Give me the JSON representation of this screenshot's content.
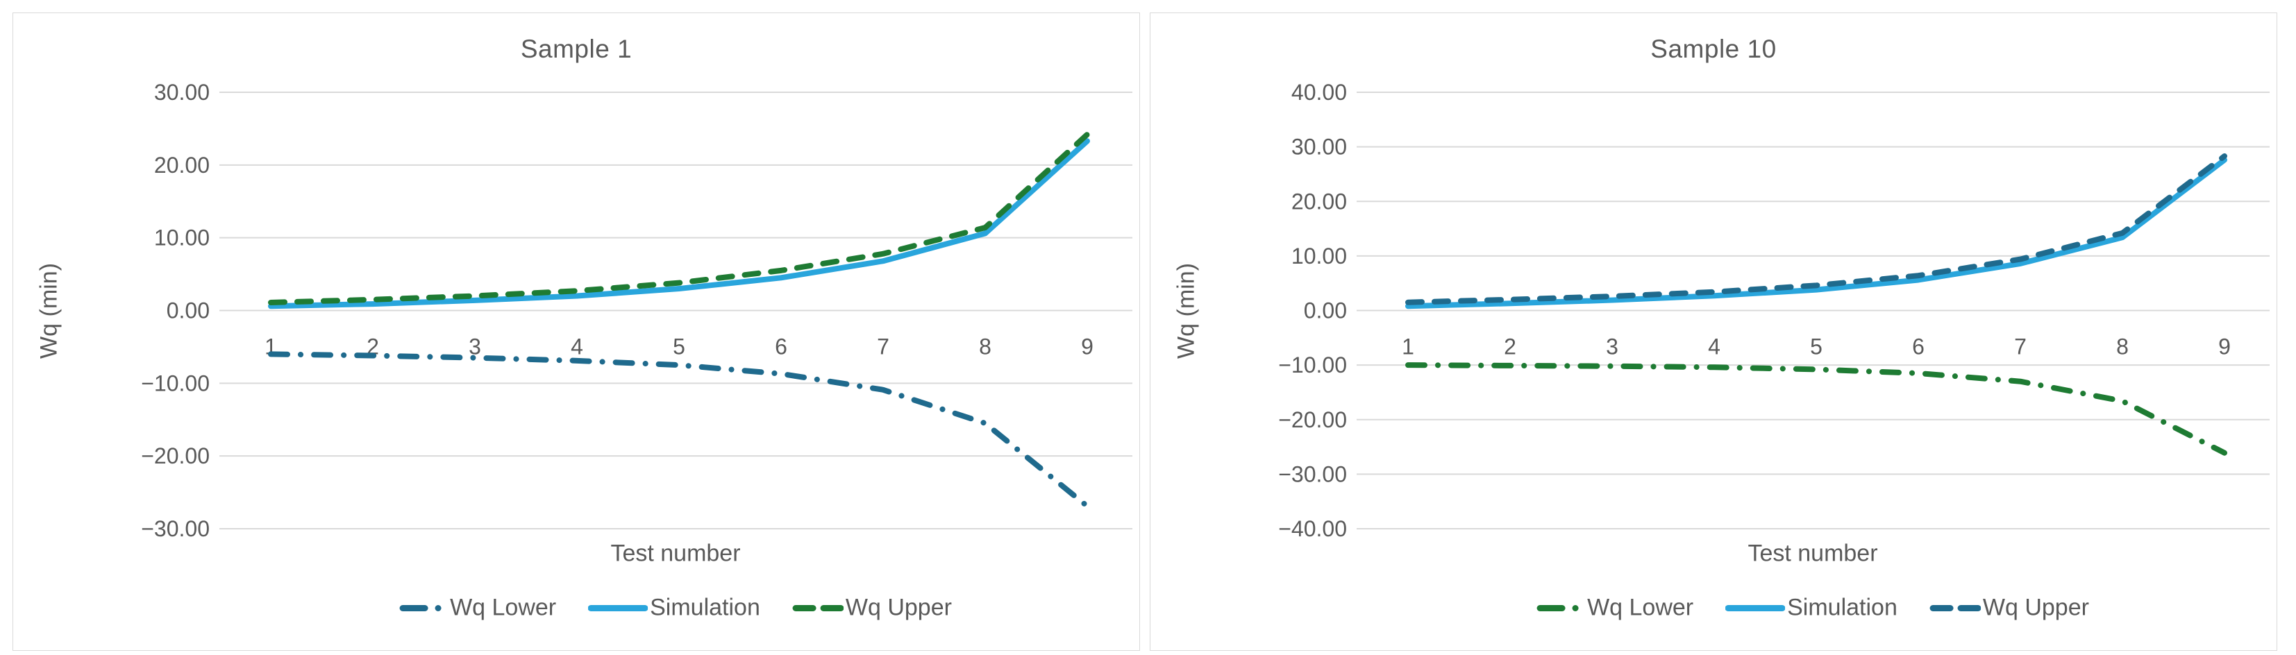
{
  "page": {
    "background": "#FFFFFF"
  },
  "colors": {
    "text_gray": "#595959",
    "gridline": "#D9D9D9",
    "panel_border": "#D9D9D9",
    "simulation_blue": "#29A5DC",
    "upper_green": "#1E7B33",
    "dark_blue": "#1F6A8D"
  },
  "chart_data": [
    {
      "type": "line",
      "title": "Sample 1",
      "xlabel": "Test number",
      "ylabel": "Wq (min)",
      "categories": [
        "1",
        "2",
        "3",
        "4",
        "5",
        "6",
        "7",
        "8",
        "9"
      ],
      "ylim": [
        -30,
        30
      ],
      "yticks": [
        30,
        20,
        10,
        0,
        -10,
        -20,
        -30
      ],
      "ytick_labels": [
        "30.00",
        "20.00",
        "10.00",
        "0.00",
        "−10.00",
        "−20.00",
        "−30.00"
      ],
      "grid": true,
      "legend_position": "bottom",
      "series": [
        {
          "name": "Wq Lower",
          "style": "dashdot",
          "color": "#1F6A8D",
          "values": [
            -6.0,
            -6.2,
            -6.5,
            -6.9,
            -7.5,
            -8.7,
            -10.9,
            -15.5,
            -26.9
          ]
        },
        {
          "name": "Simulation",
          "style": "solid",
          "color": "#29A5DC",
          "values": [
            0.6,
            0.9,
            1.4,
            2.0,
            3.0,
            4.5,
            6.8,
            10.6,
            23.3
          ]
        },
        {
          "name": "Wq Upper",
          "style": "dashed",
          "color": "#1E7B33",
          "values": [
            1.1,
            1.5,
            2.0,
            2.7,
            3.8,
            5.5,
            7.8,
            11.4,
            24.2
          ]
        }
      ]
    },
    {
      "type": "line",
      "title": "Sample 10",
      "xlabel": "Test number",
      "ylabel": "Wq (min)",
      "categories": [
        "1",
        "2",
        "3",
        "4",
        "5",
        "6",
        "7",
        "8",
        "9"
      ],
      "ylim": [
        -40,
        40
      ],
      "yticks": [
        40,
        30,
        20,
        10,
        0,
        -10,
        -20,
        -30,
        -40
      ],
      "ytick_labels": [
        "40.00",
        "30.00",
        "20.00",
        "10.00",
        "0.00",
        "−10.00",
        "−20.00",
        "−30.00",
        "−40.00"
      ],
      "grid": true,
      "legend_position": "bottom",
      "series": [
        {
          "name": "Wq Lower",
          "style": "dashdot",
          "color": "#1E7B33",
          "values": [
            -10.0,
            -10.1,
            -10.2,
            -10.4,
            -10.8,
            -11.5,
            -13.0,
            -16.6,
            -26.1
          ]
        },
        {
          "name": "Simulation",
          "style": "solid",
          "color": "#29A5DC",
          "values": [
            0.8,
            1.3,
            1.9,
            2.7,
            3.8,
            5.6,
            8.6,
            13.4,
            27.6
          ]
        },
        {
          "name": "Wq Upper",
          "style": "dashed",
          "color": "#1F6A8D",
          "values": [
            1.5,
            2.0,
            2.6,
            3.4,
            4.6,
            6.4,
            9.4,
            14.2,
            28.3
          ]
        }
      ]
    }
  ]
}
